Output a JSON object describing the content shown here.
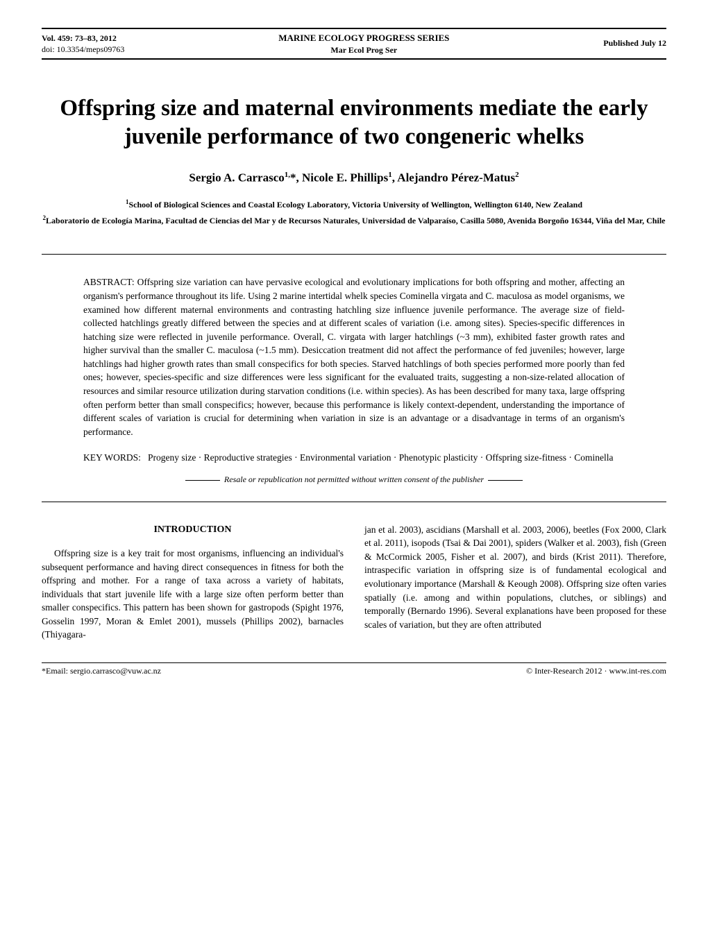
{
  "header": {
    "vol_line": "Vol. 459: 73–83, 2012",
    "doi_line": "doi: 10.3354/meps09763",
    "series_title": "MARINE ECOLOGY PROGRESS SERIES",
    "series_short": "Mar Ecol Prog Ser",
    "pub_date": "Published July 12"
  },
  "title": "Offspring size and maternal environments mediate the early juvenile performance of two congeneric whelks",
  "authors_html": "Sergio A. Carrasco<sup>1,</sup>*, Nicole E. Phillips<sup>1</sup>, Alejandro Pérez-Matus<sup>2</sup>",
  "affiliations": {
    "a1": "School of Biological Sciences and Coastal Ecology Laboratory, Victoria University of Wellington, Wellington 6140, New Zealand",
    "a2": "Laboratorio de Ecología Marina, Facultad de Ciencias del Mar y de Recursos Naturales, Universidad de Valparaíso, Casilla 5080, Avenida Borgoño 16344, Viña del Mar, Chile"
  },
  "abstract_label": "ABSTRACT:",
  "abstract_text": "Offspring size variation can have pervasive ecological and evolutionary implications for both offspring and mother, affecting an organism's performance throughout its life. Using 2 marine intertidal whelk species Cominella virgata and C. maculosa as model organisms, we examined how different maternal environments and contrasting hatchling size influence juvenile performance. The average size of field-collected hatchlings greatly differed between the species and at different scales of variation (i.e. among sites). Species-specific differences in hatching size were reflected in juvenile performance. Overall, C. virgata with larger hatchlings (~3 mm), exhibited faster growth rates and higher survival than the smaller C. maculosa (~1.5 mm). Desiccation treatment did not affect the performance of fed juveniles; however, large hatchlings had higher growth rates than small conspecifics for both species. Starved hatchlings of both species performed more poorly than fed ones; however, species-specific and size differences were less significant for the evaluated traits, suggesting a non-size-related allocation of resources and similar resource utilization during starvation conditions (i.e. within species). As has been described for many taxa, large offspring often perform better than small conspecifics; however, because this performance is likely context-dependent, understanding the importance of different scales of variation is crucial for determining when variation in size is an advantage or a disadvantage in terms of an organism's performance.",
  "keywords_label": "KEY WORDS:",
  "keywords_text": "Progeny size · Reproductive strategies · Environmental variation · Phenotypic plasticity · Offspring size-fitness · Cominella",
  "resale_notice": "Resale or republication not permitted without written consent of the publisher",
  "intro_heading": "INTRODUCTION",
  "intro_col1": "Offspring size is a key trait for most organisms, influencing an individual's subsequent performance and having direct consequences in fitness for both the offspring and mother. For a range of taxa across a variety of habitats, individuals that start juvenile life with a large size often perform better than smaller conspecifics. This pattern has been shown for gastropods (Spight 1976, Gosselin 1997, Moran & Emlet 2001), mussels (Phillips 2002), barnacles (Thiyagara-",
  "intro_col2": "jan et al. 2003), ascidians (Marshall et al. 2003, 2006), beetles (Fox 2000, Clark et al. 2011), isopods (Tsai & Dai 2001), spiders (Walker et al. 2003), fish (Green & McCormick 2005, Fisher et al. 2007), and birds (Krist 2011). Therefore, intraspecific variation in offspring size is of fundamental ecological and evolutionary importance (Marshall & Keough 2008). Offspring size often varies spatially (i.e. among and within populations, clutches, or siblings) and temporally (Bernardo 1996). Several explanations have been proposed for these scales of variation, but they are often attributed",
  "footer": {
    "email": "*Email: sergio.carrasco@vuw.ac.nz",
    "copyright": "© Inter-Research 2012 · www.int-res.com"
  }
}
